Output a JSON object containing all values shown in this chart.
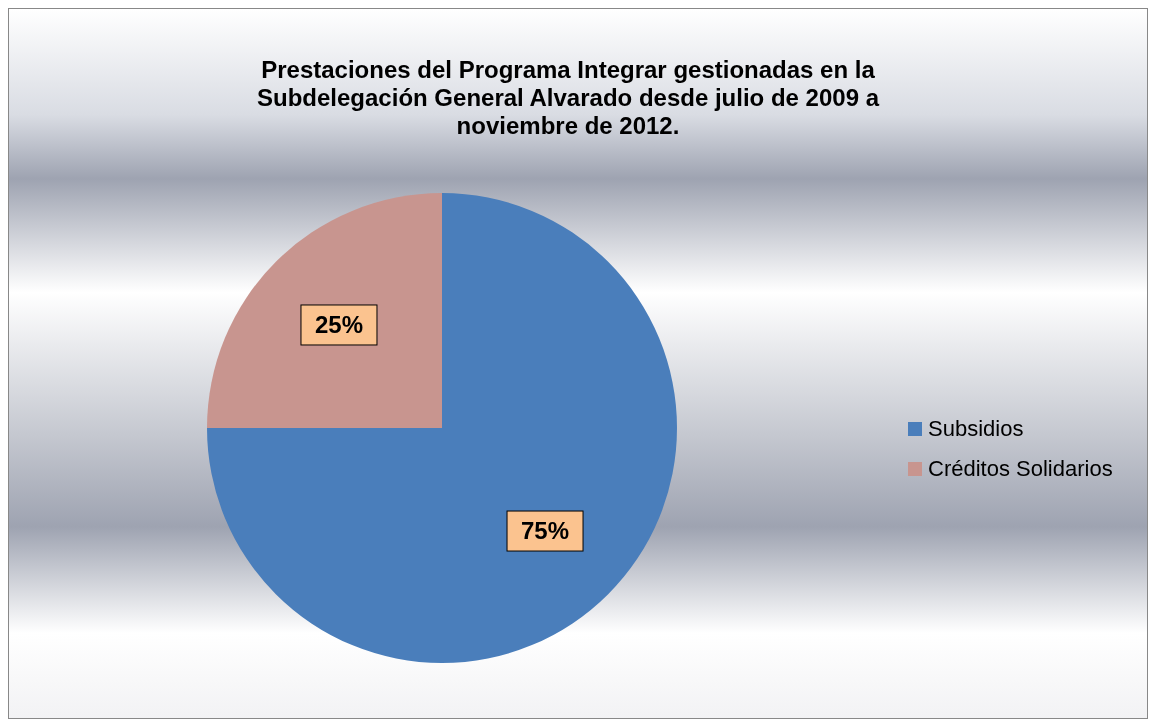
{
  "chart_data": {
    "type": "pie",
    "title": "Prestaciones del Programa Integrar gestionadas en la Subdelegación General Alvarado desde julio de 2009 a noviembre de 2012.",
    "categories": [
      "Subsidios",
      "Créditos Solidarios"
    ],
    "values": [
      75,
      25
    ],
    "colors": [
      "#4a7ebb",
      "#c8958f"
    ],
    "value_labels": [
      "75%",
      "25%"
    ],
    "legend": "right"
  }
}
